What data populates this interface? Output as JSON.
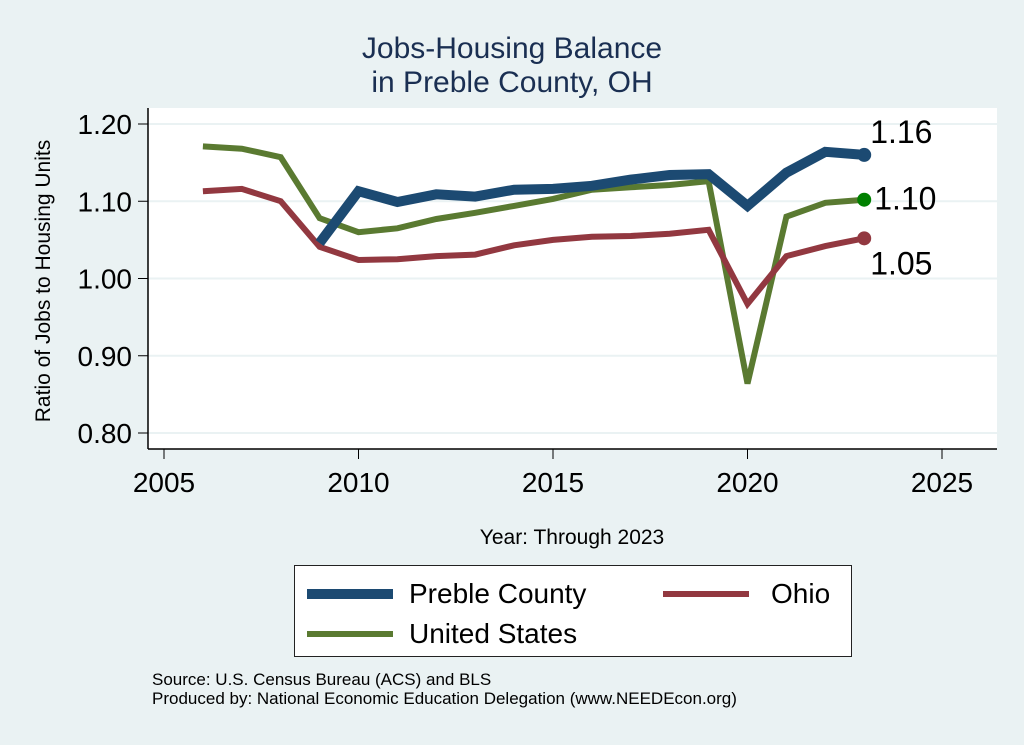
{
  "chart_data": {
    "type": "line",
    "title": "Jobs-Housing Balance",
    "subtitle": "in Preble County, OH",
    "xlabel": "Year: Through 2023",
    "ylabel": "Ratio of Jobs to Housing Units",
    "xlim": [
      2004.6,
      2026.4
    ],
    "ylim": [
      0.78,
      1.22
    ],
    "xticks": [
      2005,
      2010,
      2015,
      2020,
      2025
    ],
    "xtick_labels": [
      "2005",
      "2010",
      "2015",
      "2020",
      "2025"
    ],
    "yticks": [
      0.8,
      0.9,
      1.0,
      1.1,
      1.2
    ],
    "ytick_labels": [
      "0.80",
      "0.90",
      "1.00",
      "1.10",
      "1.20"
    ],
    "grid": true,
    "legend_position": "bottom",
    "series": [
      {
        "name": "Preble County",
        "color": "#1c4a72",
        "marker_color": "#1c4a72",
        "end_label": "1.16",
        "x": [
          2009,
          2010,
          2011,
          2012,
          2013,
          2014,
          2015,
          2016,
          2017,
          2018,
          2019,
          2020,
          2021,
          2022,
          2023
        ],
        "values": [
          1.046,
          1.113,
          1.099,
          1.109,
          1.106,
          1.115,
          1.116,
          1.12,
          1.128,
          1.134,
          1.135,
          1.094,
          1.137,
          1.164,
          1.16
        ]
      },
      {
        "name": "Ohio",
        "color": "#923840",
        "marker_color": "#923840",
        "end_label": "1.05",
        "x": [
          2006,
          2007,
          2008,
          2009,
          2010,
          2011,
          2012,
          2013,
          2014,
          2015,
          2016,
          2017,
          2018,
          2019,
          2020,
          2021,
          2022,
          2023
        ],
        "values": [
          1.113,
          1.116,
          1.1,
          1.041,
          1.024,
          1.025,
          1.029,
          1.031,
          1.043,
          1.05,
          1.054,
          1.055,
          1.058,
          1.063,
          0.967,
          1.029,
          1.042,
          1.052
        ]
      },
      {
        "name": "United States",
        "color": "#5a7a31",
        "marker_color": "#008000",
        "end_label": "1.10",
        "x": [
          2006,
          2007,
          2008,
          2009,
          2010,
          2011,
          2012,
          2013,
          2014,
          2015,
          2016,
          2017,
          2018,
          2019,
          2020,
          2021,
          2022,
          2023
        ],
        "values": [
          1.171,
          1.168,
          1.157,
          1.078,
          1.06,
          1.065,
          1.077,
          1.085,
          1.094,
          1.103,
          1.115,
          1.118,
          1.121,
          1.126,
          0.864,
          1.08,
          1.098,
          1.102
        ]
      }
    ]
  },
  "legend": {
    "items": [
      {
        "label": "Preble County",
        "color": "#1c4a72"
      },
      {
        "label": "Ohio",
        "color": "#923840"
      },
      {
        "label": "United States",
        "color": "#5a7a31"
      }
    ]
  },
  "footer": {
    "source": "Source: U.S. Census Bureau (ACS) and BLS",
    "produced_by": "Produced by: National Economic Education Delegation (www.NEEDEcon.org)"
  }
}
